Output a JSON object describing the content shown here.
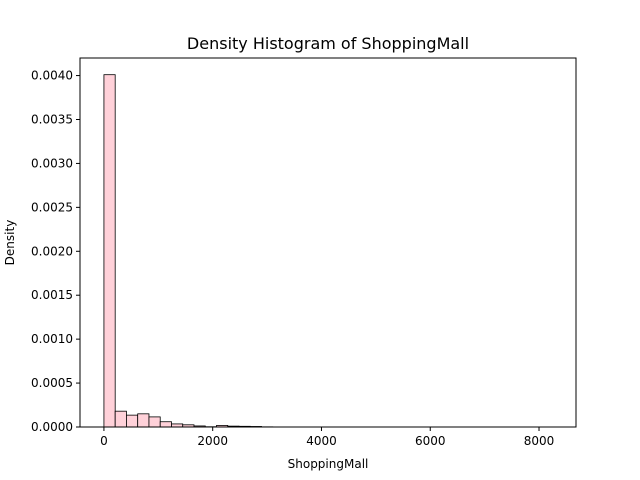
{
  "chart_data": {
    "type": "histogram",
    "title": "Density Histogram of ShoppingMall",
    "xlabel": "ShoppingMall",
    "ylabel": "Density",
    "xlim": [
      -440,
      8680
    ],
    "ylim": [
      0,
      0.0042
    ],
    "x_ticks": [
      0,
      2000,
      4000,
      6000,
      8000
    ],
    "x_tick_labels": [
      "0",
      "2000",
      "4000",
      "6000",
      "8000"
    ],
    "y_ticks": [
      0.0,
      0.0005,
      0.001,
      0.0015,
      0.002,
      0.0025,
      0.003,
      0.0035,
      0.004
    ],
    "y_tick_labels": [
      "0.0000",
      "0.0005",
      "0.0010",
      "0.0015",
      "0.0020",
      "0.0025",
      "0.0030",
      "0.0035",
      "0.0040"
    ],
    "bin_edges": [
      0,
      207,
      414,
      621,
      828,
      1035,
      1242,
      1449,
      1656,
      1863,
      2070,
      2277,
      2484,
      2691,
      2898,
      3105,
      3312,
      3519,
      3726,
      3933,
      4140,
      4347,
      4554,
      4761,
      4968,
      5175,
      5382,
      5589,
      5796,
      6003,
      6210,
      6417,
      6624,
      6831,
      7038,
      7245,
      7452,
      7659,
      7866,
      8073,
      8280
    ],
    "values": [
      0.00401,
      0.00018,
      0.000135,
      0.00015,
      0.000115,
      6e-05,
      3.5e-05,
      2.5e-05,
      1.2e-05,
      3e-06,
      1.8e-05,
      1e-05,
      8e-06,
      6e-06,
      2e-06,
      1e-06,
      1e-06,
      1e-06,
      5e-07,
      5e-07,
      5e-07,
      5e-07,
      3e-07,
      3e-07,
      3e-07,
      3e-07,
      2e-07,
      2e-07,
      2e-07,
      2e-07,
      2e-07,
      2e-07,
      1e-07,
      1e-07,
      1e-07,
      1e-07,
      1e-07,
      1e-07,
      1e-07,
      1e-07
    ],
    "bar_color": "#ffd1d9",
    "edge_color": "#000000",
    "grid": false,
    "legend": false
  }
}
